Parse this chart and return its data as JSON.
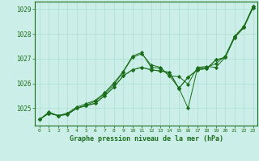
{
  "bg_color": "#cceee8",
  "plot_bg_color": "#cceee8",
  "grid_color": "#aaddcc",
  "line_color": "#1a6e1a",
  "marker_color": "#1a6e1a",
  "xlabel": "Graphe pression niveau de la mer (hPa)",
  "xlim": [
    -0.5,
    23.5
  ],
  "ylim": [
    1024.3,
    1029.3
  ],
  "yticks": [
    1025,
    1026,
    1027,
    1028,
    1029
  ],
  "xticks": [
    0,
    1,
    2,
    3,
    4,
    5,
    6,
    7,
    8,
    9,
    10,
    11,
    12,
    13,
    14,
    15,
    16,
    17,
    18,
    19,
    20,
    21,
    22,
    23
  ],
  "series": [
    {
      "x": [
        0,
        1,
        2,
        3,
        4,
        5,
        6,
        7,
        8,
        9,
        10,
        11,
        12,
        13,
        14,
        15,
        16,
        17,
        18,
        19,
        20,
        21,
        22,
        23
      ],
      "y": [
        1024.55,
        1024.8,
        1024.7,
        1024.75,
        1025.0,
        1025.1,
        1025.2,
        1025.5,
        1025.85,
        1026.3,
        1026.55,
        1026.65,
        1026.55,
        1026.5,
        1026.45,
        1025.8,
        1026.25,
        1026.55,
        1026.6,
        1026.95,
        1027.05,
        1027.85,
        1028.25,
        1029.1
      ]
    },
    {
      "x": [
        0,
        1,
        2,
        3,
        4,
        5,
        6,
        7,
        8,
        9,
        10,
        11,
        12,
        13,
        14,
        15,
        16,
        17,
        18,
        19,
        20,
        21,
        22,
        23
      ],
      "y": [
        1024.55,
        1024.8,
        1024.7,
        1024.78,
        1025.0,
        1025.12,
        1025.28,
        1025.58,
        1025.95,
        1026.45,
        1027.05,
        1027.2,
        1026.75,
        1026.65,
        1026.3,
        1025.82,
        1025.0,
        1026.6,
        1026.65,
        1026.8,
        1027.1,
        1027.9,
        1028.3,
        1029.1
      ]
    },
    {
      "x": [
        0,
        1,
        2,
        3,
        4,
        5,
        6,
        7,
        8,
        9,
        10,
        11,
        12,
        13,
        14,
        15,
        16,
        17,
        18,
        19,
        20,
        21,
        22,
        23
      ],
      "y": [
        1024.55,
        1024.8,
        1024.7,
        1024.75,
        1025.0,
        1025.1,
        1025.2,
        1025.5,
        1025.85,
        1026.3,
        1026.55,
        1026.65,
        1026.55,
        1026.5,
        1026.45,
        1025.8,
        1026.25,
        1026.55,
        1026.6,
        1026.95,
        1027.05,
        1027.85,
        1028.25,
        1029.05
      ]
    },
    {
      "x": [
        0,
        1,
        2,
        3,
        4,
        5,
        6,
        7,
        8,
        9,
        10,
        11,
        12,
        13,
        14,
        15,
        16,
        17,
        18,
        19,
        20,
        21,
        22,
        23
      ],
      "y": [
        1024.55,
        1024.85,
        1024.7,
        1024.8,
        1025.05,
        1025.18,
        1025.32,
        1025.62,
        1026.02,
        1026.48,
        1027.1,
        1027.25,
        1026.65,
        1026.62,
        1026.3,
        1026.28,
        1025.97,
        1026.65,
        1026.68,
        1026.65,
        1027.05,
        1027.87,
        1028.28,
        1029.1
      ]
    }
  ]
}
